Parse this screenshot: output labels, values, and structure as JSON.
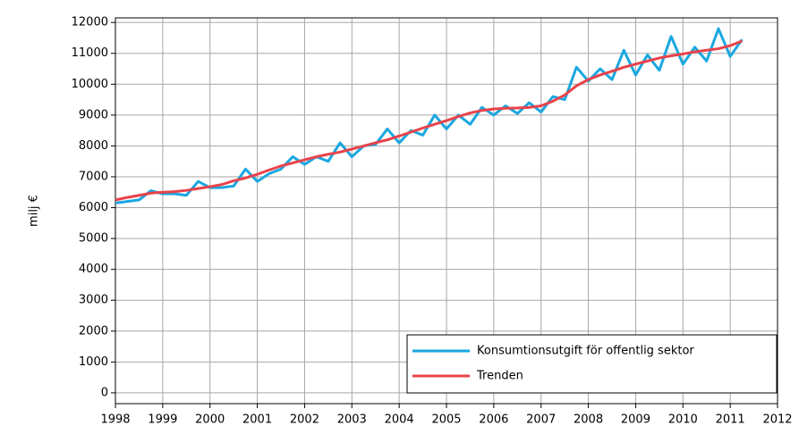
{
  "chart_data": {
    "type": "line",
    "y_label": "milj €",
    "x": [
      1998,
      1998.25,
      1998.5,
      1998.75,
      1999,
      1999.25,
      1999.5,
      1999.75,
      2000,
      2000.25,
      2000.5,
      2000.75,
      2001,
      2001.25,
      2001.5,
      2001.75,
      2002,
      2002.25,
      2002.5,
      2002.75,
      2003,
      2003.25,
      2003.5,
      2003.75,
      2004,
      2004.25,
      2004.5,
      2004.75,
      2005,
      2005.25,
      2005.5,
      2005.75,
      2006,
      2006.25,
      2006.5,
      2006.75,
      2007,
      2007.25,
      2007.5,
      2007.75,
      2008,
      2008.25,
      2008.5,
      2008.75,
      2009,
      2009.25,
      2009.5,
      2009.75,
      2010,
      2010.25,
      2010.5,
      2010.75,
      2011,
      2011.25
    ],
    "series": [
      {
        "name": "Konsumtionsutgift för offentlig sektor",
        "color": "#1aa7e0",
        "values": [
          6150,
          6200,
          6250,
          6550,
          6450,
          6450,
          6400,
          6850,
          6650,
          6650,
          6700,
          7250,
          6850,
          7100,
          7250,
          7650,
          7400,
          7650,
          7500,
          8100,
          7650,
          8000,
          8050,
          8550,
          8100,
          8500,
          8350,
          9000,
          8550,
          9000,
          8700,
          9250,
          9000,
          9300,
          9050,
          9400,
          9100,
          9600,
          9500,
          10550,
          10100,
          10500,
          10150,
          11100,
          10300,
          10950,
          10450,
          11550,
          10650,
          11200,
          10750,
          11800,
          10900,
          11450
        ]
      },
      {
        "name": "Trenden",
        "color": "#e8434b",
        "values": [
          6250,
          6330,
          6400,
          6470,
          6500,
          6520,
          6560,
          6620,
          6680,
          6750,
          6870,
          6960,
          7080,
          7220,
          7350,
          7450,
          7550,
          7650,
          7730,
          7800,
          7900,
          8000,
          8100,
          8200,
          8320,
          8450,
          8580,
          8700,
          8820,
          8950,
          9070,
          9150,
          9200,
          9220,
          9230,
          9250,
          9300,
          9450,
          9650,
          9950,
          10150,
          10300,
          10420,
          10550,
          10650,
          10750,
          10850,
          10920,
          10980,
          11050,
          11100,
          11150,
          11250,
          11400
        ]
      }
    ],
    "xlim": [
      1998,
      2012
    ],
    "xticks": [
      1998,
      1999,
      2000,
      2001,
      2002,
      2003,
      2004,
      2005,
      2006,
      2007,
      2008,
      2009,
      2010,
      2011,
      2012
    ],
    "ylim": [
      -350,
      12150
    ],
    "yticks": [
      0,
      1000,
      2000,
      3000,
      4000,
      5000,
      6000,
      7000,
      8000,
      9000,
      10000,
      11000,
      12000
    ],
    "grid": true,
    "legend": "lower right"
  }
}
